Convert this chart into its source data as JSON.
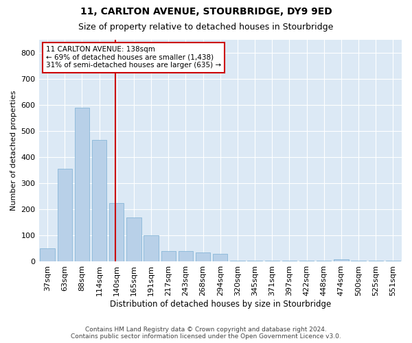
{
  "title": "11, CARLTON AVENUE, STOURBRIDGE, DY9 9ED",
  "subtitle": "Size of property relative to detached houses in Stourbridge",
  "xlabel": "Distribution of detached houses by size in Stourbridge",
  "ylabel": "Number of detached properties",
  "bar_color": "#b8d0e8",
  "bar_edge_color": "#7aafd4",
  "background_color": "#dce9f5",
  "grid_color": "#ffffff",
  "vline_color": "#cc0000",
  "annotation_text": "11 CARLTON AVENUE: 138sqm\n← 69% of detached houses are smaller (1,438)\n31% of semi-detached houses are larger (635) →",
  "annotation_box_facecolor": "#ffffff",
  "annotation_box_edge_color": "#cc0000",
  "categories": [
    "37sqm",
    "63sqm",
    "88sqm",
    "114sqm",
    "140sqm",
    "165sqm",
    "191sqm",
    "217sqm",
    "243sqm",
    "268sqm",
    "294sqm",
    "320sqm",
    "345sqm",
    "371sqm",
    "397sqm",
    "422sqm",
    "448sqm",
    "474sqm",
    "500sqm",
    "525sqm",
    "551sqm"
  ],
  "values": [
    50,
    355,
    590,
    465,
    225,
    170,
    100,
    40,
    40,
    35,
    30,
    5,
    5,
    5,
    5,
    5,
    5,
    10,
    5,
    5,
    5
  ],
  "ylim": [
    0,
    850
  ],
  "yticks": [
    0,
    100,
    200,
    300,
    400,
    500,
    600,
    700,
    800
  ],
  "footer": "Contains HM Land Registry data © Crown copyright and database right 2024.\nContains public sector information licensed under the Open Government Licence v3.0.",
  "fig_bg": "#ffffff"
}
